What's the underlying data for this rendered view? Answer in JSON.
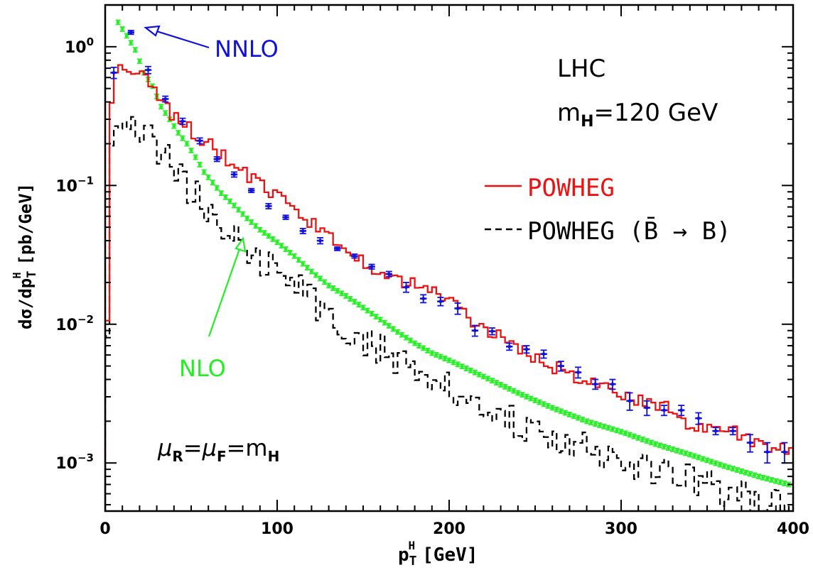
{
  "chart_data": {
    "type": "line",
    "xlabel": "p",
    "xlabel_sub": "T",
    "xlabel_sup": "H",
    "xlabel_unit": "[GeV]",
    "ylabel": {
      "prefix": "dσ/dp",
      "sub": "T",
      "sup": "H",
      "unit": "[pb/GeV]"
    },
    "x_scale": "linear",
    "y_scale": "log",
    "xlim": [
      0,
      400
    ],
    "ylim": [
      0.00045,
      2.0
    ],
    "x_ticks": [
      {
        "v": 0,
        "label": "0"
      },
      {
        "v": 100,
        "label": "100"
      },
      {
        "v": 200,
        "label": "200"
      },
      {
        "v": 300,
        "label": "300"
      },
      {
        "v": 400,
        "label": "400"
      }
    ],
    "y_ticks": [
      {
        "v": 1,
        "base": "10",
        "exp": "0"
      },
      {
        "v": 0.1,
        "base": "10",
        "exp": "−1"
      },
      {
        "v": 0.01,
        "base": "10",
        "exp": "−2"
      },
      {
        "v": 0.001,
        "base": "10",
        "exp": "−3"
      }
    ],
    "grid": false,
    "text_annotations": {
      "collider": "LHC",
      "mass_prefix": "m",
      "mass_sub": "H",
      "mass_value": "=120 GeV",
      "scale_mu": "μ",
      "scale_sub_r": "R",
      "scale_eq": "=",
      "scale_sub_f": "F",
      "scale_eq2": "=m",
      "scale_sub_h": "H"
    },
    "legend": {
      "position": "right",
      "entries": [
        {
          "label": "POWHEG",
          "color": "#ee1111",
          "dash": "solid"
        },
        {
          "label": "POWHEG (B̄ → B)",
          "color": "#000000",
          "dash": "dashed"
        }
      ]
    },
    "callouts": [
      {
        "label": "NNLO",
        "color": "#1111dd",
        "x": 25,
        "y": 1.27
      },
      {
        "label": "NLO",
        "color": "#22ee22",
        "x": 82,
        "y": 0.04
      }
    ],
    "series": [
      {
        "name": "POWHEG",
        "style": "step",
        "color": "#ee1111",
        "dash": "solid",
        "bin_width": 2.5,
        "x_anchors": [
          0,
          2.5,
          5,
          10,
          15,
          20,
          25,
          30,
          40,
          50,
          60,
          70,
          80,
          90,
          100,
          110,
          120,
          130,
          140,
          150,
          160,
          170,
          180,
          190,
          200,
          210,
          220,
          230,
          240,
          250,
          260,
          270,
          280,
          290,
          300,
          310,
          320,
          330,
          340,
          350,
          360,
          370,
          380,
          390,
          400
        ],
        "y_anchors": [
          0.00045,
          0.25,
          0.62,
          0.75,
          0.72,
          0.66,
          0.55,
          0.43,
          0.32,
          0.25,
          0.2,
          0.155,
          0.127,
          0.1,
          0.082,
          0.067,
          0.053,
          0.043,
          0.035,
          0.029,
          0.024,
          0.021,
          0.019,
          0.0175,
          0.015,
          0.0115,
          0.0095,
          0.008,
          0.0067,
          0.0058,
          0.005,
          0.0044,
          0.0039,
          0.0035,
          0.0032,
          0.0028,
          0.0027,
          0.0025,
          0.0018,
          0.0017,
          0.00175,
          0.0016,
          0.0013,
          0.00125,
          0.0012
        ],
        "noise": 0.05
      },
      {
        "name": "POWHEG (B̄ → B)",
        "style": "step",
        "color": "#000000",
        "dash": "dashed",
        "bin_width": 2.5,
        "x_anchors": [
          0,
          2.5,
          5,
          10,
          15,
          20,
          30,
          40,
          50,
          60,
          70,
          80,
          90,
          100,
          120,
          140,
          160,
          180,
          200,
          220,
          240,
          260,
          280,
          300,
          320,
          340,
          360,
          380,
          400
        ],
        "y_anchors": [
          0.00045,
          0.15,
          0.25,
          0.33,
          0.31,
          0.28,
          0.19,
          0.13,
          0.092,
          0.068,
          0.05,
          0.037,
          0.03,
          0.024,
          0.015,
          0.0095,
          0.0066,
          0.0047,
          0.0035,
          0.0025,
          0.0019,
          0.0015,
          0.00125,
          0.001,
          0.00088,
          0.00075,
          0.00062,
          0.00052,
          0.00046
        ],
        "noise": 0.12
      },
      {
        "name": "NLO",
        "style": "errorbars",
        "color": "#22ee22",
        "bin_width": 2.5,
        "x": [
          7.5,
          10,
          12.5,
          15,
          17.5,
          20,
          22.5,
          25,
          27.5,
          30,
          32.5,
          35,
          37.5,
          40,
          42.5,
          45,
          47.5,
          50,
          52.5,
          55,
          57.5,
          60,
          62.5,
          65,
          67.5,
          70,
          72.5,
          75,
          77.5,
          80,
          82.5,
          85,
          87.5,
          90,
          92.5,
          95,
          97.5,
          100,
          102.5,
          105,
          107.5,
          110,
          112.5,
          115,
          117.5,
          120,
          122.5,
          125,
          127.5,
          130,
          132.5,
          135,
          137.5,
          140,
          142.5,
          145,
          147.5,
          150,
          152.5,
          155,
          157.5,
          160,
          162.5,
          165,
          167.5,
          170,
          172.5,
          175,
          177.5,
          180,
          182.5,
          185,
          187.5,
          190,
          192.5,
          195,
          197.5,
          200,
          202.5,
          205,
          207.5,
          210,
          212.5,
          215,
          217.5,
          220,
          222.5,
          225,
          227.5,
          230,
          232.5,
          235,
          237.5,
          240,
          242.5,
          245,
          247.5,
          250,
          252.5,
          255,
          257.5,
          260,
          262.5,
          265,
          267.5,
          270,
          272.5,
          275,
          277.5,
          280,
          282.5,
          285,
          287.5,
          290,
          292.5,
          295,
          297.5,
          300,
          302.5,
          305,
          307.5,
          310,
          312.5,
          315,
          317.5,
          320,
          322.5,
          325,
          327.5,
          330,
          332.5,
          335,
          337.5,
          340,
          342.5,
          345,
          347.5,
          350,
          352.5,
          355,
          357.5,
          360,
          362.5,
          365,
          367.5,
          370,
          372.5,
          375,
          377.5,
          380,
          382.5,
          385,
          387.5,
          390,
          392.5,
          395,
          397.5
        ],
        "y_anchor_x": [
          7.5,
          12.5,
          17.5,
          22.5,
          27.5,
          32.5,
          37.5,
          42.5,
          47.5,
          52.5,
          57.5,
          62.5,
          67.5,
          72.5,
          77.5,
          82.5,
          90,
          100,
          110,
          120,
          130,
          140,
          150,
          160,
          170,
          180,
          190,
          200,
          220,
          240,
          260,
          280,
          300,
          320,
          340,
          360,
          380,
          397.5
        ],
        "y_anchor_y": [
          1.5,
          1.2,
          0.95,
          0.65,
          0.52,
          0.37,
          0.3,
          0.24,
          0.2,
          0.16,
          0.125,
          0.105,
          0.088,
          0.077,
          0.067,
          0.058,
          0.048,
          0.039,
          0.031,
          0.024,
          0.019,
          0.016,
          0.0132,
          0.0108,
          0.0088,
          0.0073,
          0.0062,
          0.0055,
          0.0042,
          0.0032,
          0.0025,
          0.002,
          0.00168,
          0.00137,
          0.00115,
          0.00095,
          0.0008,
          0.0007
        ]
      },
      {
        "name": "NNLO",
        "style": "errorbars",
        "color": "#1111dd",
        "bin_width": 5,
        "x": [
          5,
          15,
          25,
          35,
          45,
          55,
          65,
          75,
          85,
          95,
          105,
          115,
          125,
          135,
          145,
          155,
          165,
          175,
          185,
          195,
          205,
          215,
          225,
          235,
          245,
          255,
          265,
          275,
          285,
          295,
          305,
          315,
          325,
          335,
          345,
          355,
          365,
          375,
          385,
          395
        ],
        "y": [
          0.65,
          1.27,
          0.68,
          0.42,
          0.29,
          0.21,
          0.155,
          0.12,
          0.092,
          0.071,
          0.059,
          0.047,
          0.04,
          0.035,
          0.031,
          0.026,
          0.023,
          0.0185,
          0.0153,
          0.0146,
          0.013,
          0.009,
          0.0089,
          0.0069,
          0.0066,
          0.0061,
          0.005,
          0.0045,
          0.0037,
          0.0037,
          0.0028,
          0.0025,
          0.0024,
          0.0024,
          0.0021,
          0.0017,
          0.0017,
          0.0014,
          0.0012,
          0.0012
        ],
        "err": [
          0.06,
          0.04,
          0.04,
          0.02,
          0.015,
          0.01,
          0.006,
          0.005,
          0.003,
          0.003,
          0.002,
          0.002,
          0.002,
          0.001,
          0.001,
          0.001,
          0.001,
          0.0015,
          0.001,
          0.001,
          0.0012,
          0.0008,
          0.0005,
          0.0004,
          0.0004,
          0.0004,
          0.0004,
          0.0004,
          0.0003,
          0.0003,
          0.0004,
          0.0003,
          0.0002,
          0.0002,
          0.0002,
          0.0001,
          0.0001,
          0.0002,
          0.0002,
          0.0002
        ]
      }
    ]
  }
}
